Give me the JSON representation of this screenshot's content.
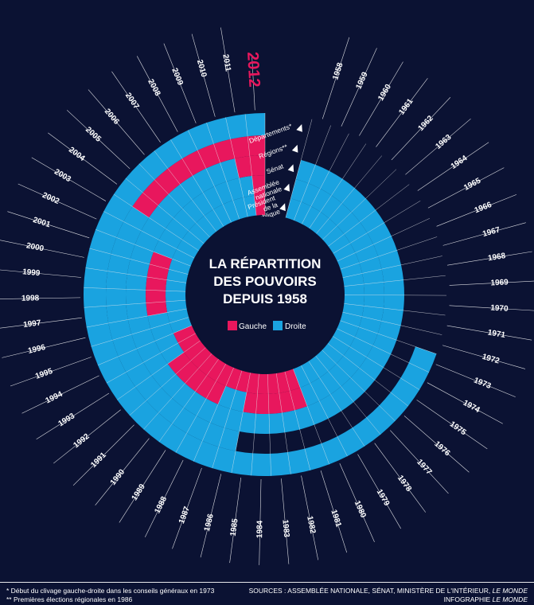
{
  "colors": {
    "gauche": "#e8175d",
    "droite": "#1aa3e0",
    "background": "#0b1233"
  },
  "title_lines": [
    "LA RÉPARTITION",
    "DES POUVOIRS",
    "DEPUIS 1958"
  ],
  "legend": {
    "gauche": "Gauche",
    "droite": "Droite"
  },
  "institutions": [
    "Départements*",
    "Régions**",
    "Sénat",
    "Assemblée nationale",
    "Président de la République"
  ],
  "footnotes": {
    "note1": "* Début du clivage gauche-droite dans les conseils généraux en 1973",
    "note2": "** Premières élections régionales en 1986",
    "sources_prefix": "SOURCES : ASSEMBLÉE NATIONALE, SÉNAT, MINISTÈRE DE L'INTÉRIEUR, ",
    "sources_pub": "LE MONDE",
    "credit_prefix": "INFOGRAPHIE ",
    "credit_pub": "LE MONDE"
  },
  "chart_data": {
    "type": "radial-timeline",
    "title": "LA RÉPARTITION DES POUVOIRS DEPUIS 1958",
    "highlight_year": 2012,
    "years": [
      1958,
      1959,
      1960,
      1961,
      1962,
      1963,
      1964,
      1965,
      1966,
      1967,
      1968,
      1969,
      1970,
      1971,
      1972,
      1973,
      1974,
      1975,
      1976,
      1977,
      1978,
      1979,
      1980,
      1981,
      1982,
      1983,
      1984,
      1985,
      1986,
      1987,
      1988,
      1989,
      1990,
      1991,
      1992,
      1993,
      1994,
      1995,
      1996,
      1997,
      1998,
      1999,
      2000,
      2001,
      2002,
      2003,
      2004,
      2005,
      2006,
      2007,
      2008,
      2009,
      2010,
      2011,
      2012
    ],
    "categories": {
      "G": "Gauche",
      "D": "Droite"
    },
    "series": [
      {
        "name": "Président de la République",
        "values": [
          "D",
          "D",
          "D",
          "D",
          "D",
          "D",
          "D",
          "D",
          "D",
          "D",
          "D",
          "D",
          "D",
          "D",
          "D",
          "D",
          "D",
          "D",
          "D",
          "D",
          "D",
          "D",
          "D",
          "G",
          "G",
          "G",
          "G",
          "G",
          "G",
          "G",
          "G",
          "G",
          "G",
          "G",
          "G",
          "G",
          "G",
          "D",
          "D",
          "D",
          "D",
          "D",
          "D",
          "D",
          "D",
          "D",
          "D",
          "D",
          "D",
          "D",
          "D",
          "D",
          "D",
          "D",
          "G"
        ]
      },
      {
        "name": "Assemblée nationale",
        "values": [
          "D",
          "D",
          "D",
          "D",
          "D",
          "D",
          "D",
          "D",
          "D",
          "D",
          "D",
          "D",
          "D",
          "D",
          "D",
          "D",
          "D",
          "D",
          "D",
          "D",
          "D",
          "D",
          "D",
          "G",
          "G",
          "G",
          "G",
          "G",
          "D",
          "D",
          "G",
          "G",
          "G",
          "G",
          "G",
          "D",
          "D",
          "D",
          "D",
          "G",
          "G",
          "G",
          "G",
          "G",
          "D",
          "D",
          "D",
          "D",
          "D",
          "D",
          "D",
          "D",
          "D",
          "D",
          "G"
        ]
      },
      {
        "name": "Sénat",
        "values": [
          "D",
          "D",
          "D",
          "D",
          "D",
          "D",
          "D",
          "D",
          "D",
          "D",
          "D",
          "D",
          "D",
          "D",
          "D",
          "D",
          "D",
          "D",
          "D",
          "D",
          "D",
          "D",
          "D",
          "D",
          "D",
          "D",
          "D",
          "D",
          "D",
          "D",
          "D",
          "D",
          "D",
          "D",
          "D",
          "D",
          "D",
          "D",
          "D",
          "D",
          "D",
          "D",
          "D",
          "D",
          "D",
          "D",
          "D",
          "D",
          "D",
          "D",
          "D",
          "D",
          "D",
          "G",
          "G"
        ]
      },
      {
        "name": "Régions",
        "values": [
          null,
          null,
          null,
          null,
          null,
          null,
          null,
          null,
          null,
          null,
          null,
          null,
          null,
          null,
          null,
          null,
          null,
          null,
          null,
          null,
          null,
          null,
          null,
          null,
          null,
          null,
          null,
          null,
          "D",
          "D",
          "D",
          "D",
          "D",
          "D",
          "D",
          "D",
          "D",
          "D",
          "D",
          "D",
          "D",
          "D",
          "D",
          "D",
          "D",
          "D",
          "G",
          "G",
          "G",
          "G",
          "G",
          "G",
          "G",
          "G",
          "G"
        ]
      },
      {
        "name": "Départements",
        "values": [
          null,
          null,
          null,
          null,
          null,
          null,
          null,
          null,
          null,
          null,
          null,
          null,
          null,
          null,
          null,
          "D",
          "D",
          "D",
          "D",
          "D",
          "D",
          "D",
          "D",
          "D",
          "D",
          "D",
          "D",
          "D",
          "D",
          "D",
          "D",
          "D",
          "D",
          "D",
          "D",
          "D",
          "D",
          "D",
          "D",
          "D",
          "D",
          "D",
          "D",
          "D",
          "D",
          "D",
          "D",
          "D",
          "D",
          "D",
          "D",
          "D",
          "D",
          "D",
          "D"
        ]
      }
    ]
  }
}
